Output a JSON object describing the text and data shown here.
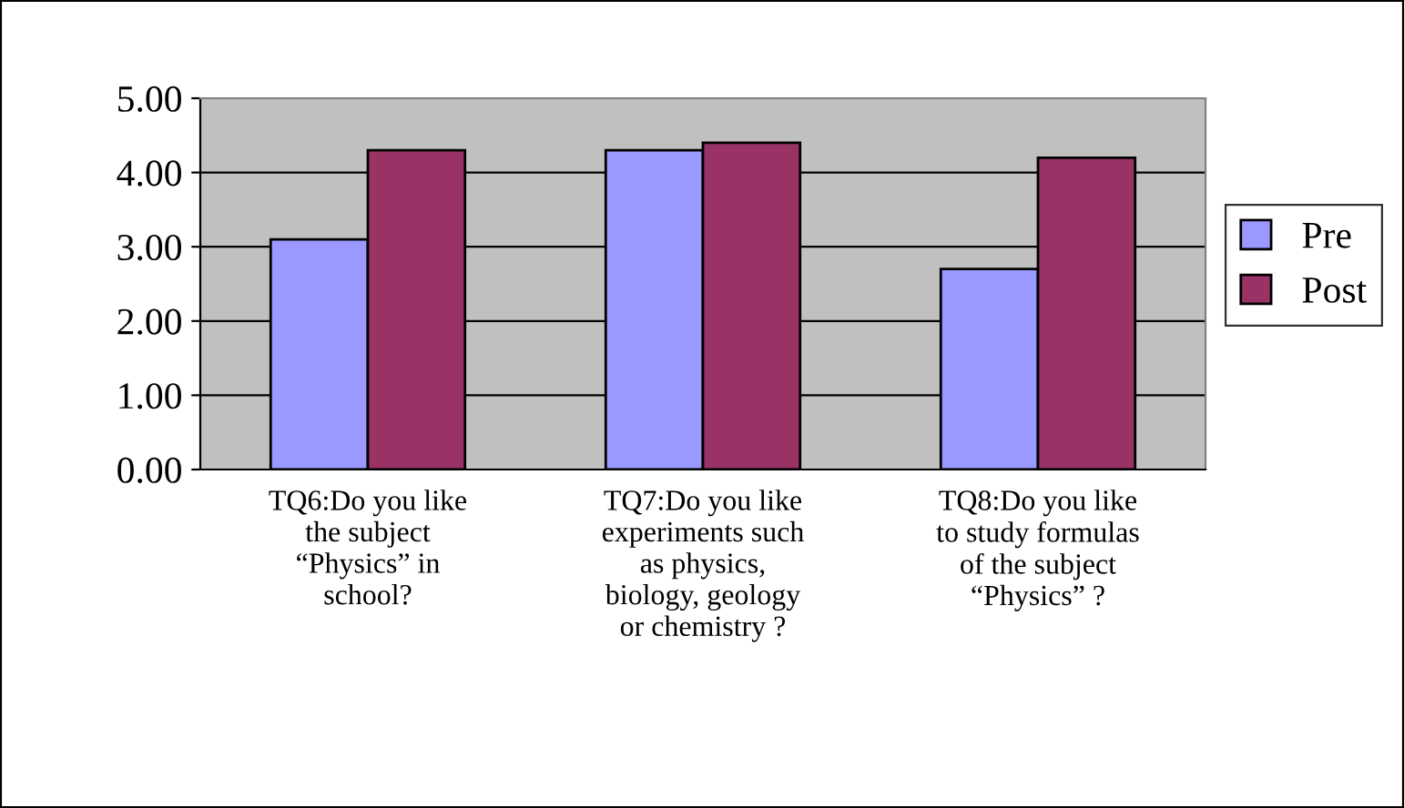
{
  "chart_data": {
    "type": "bar",
    "categories": [
      "TQ6:Do you like\nthe subject\n“Physics” in\nschool?",
      "TQ7:Do you like\nexperiments such\nas physics,\nbiology, geology\nor chemistry ?",
      "TQ8:Do you like\nto study formulas\nof the subject\n“Physics” ?"
    ],
    "series": [
      {
        "name": "Pre",
        "color": "#9999ff",
        "values": [
          3.1,
          4.3,
          2.7
        ]
      },
      {
        "name": "Post",
        "color": "#993366",
        "values": [
          4.3,
          4.4,
          4.2
        ]
      }
    ],
    "ylim": [
      0,
      5
    ],
    "yticks": [
      {
        "value": 0,
        "label": "0.00"
      },
      {
        "value": 1,
        "label": "1.00"
      },
      {
        "value": 2,
        "label": "2.00"
      },
      {
        "value": 3,
        "label": "3.00"
      },
      {
        "value": 4,
        "label": "4.00"
      },
      {
        "value": 5,
        "label": "5.00"
      }
    ],
    "grid": "y",
    "legend": "right"
  }
}
